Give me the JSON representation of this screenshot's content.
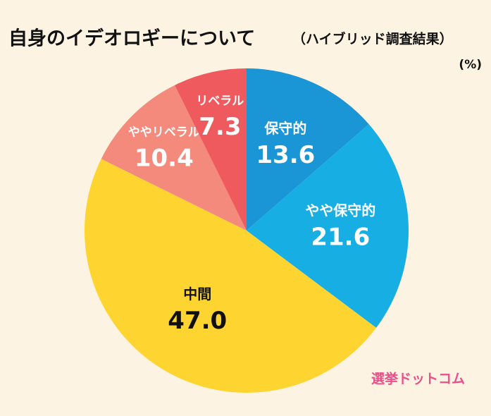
{
  "chart_data": {
    "type": "pie",
    "title": "自身のイデオロギーについて",
    "subtitle": "（ハイブリッド調査結果）",
    "unit_label": "(%)",
    "source": "選挙ドットコム",
    "categories": [
      "保守的",
      "やや保守的",
      "中間",
      "ややリベラル",
      "リベラル"
    ],
    "values": [
      13.6,
      21.6,
      47.0,
      10.4,
      7.3
    ],
    "value_labels": [
      "13.6",
      "21.6",
      "47.0",
      "10.4",
      "7.3"
    ],
    "colors": [
      "#1a96d6",
      "#17aee3",
      "#fdd430",
      "#f48a7b",
      "#ee5a5e"
    ]
  }
}
